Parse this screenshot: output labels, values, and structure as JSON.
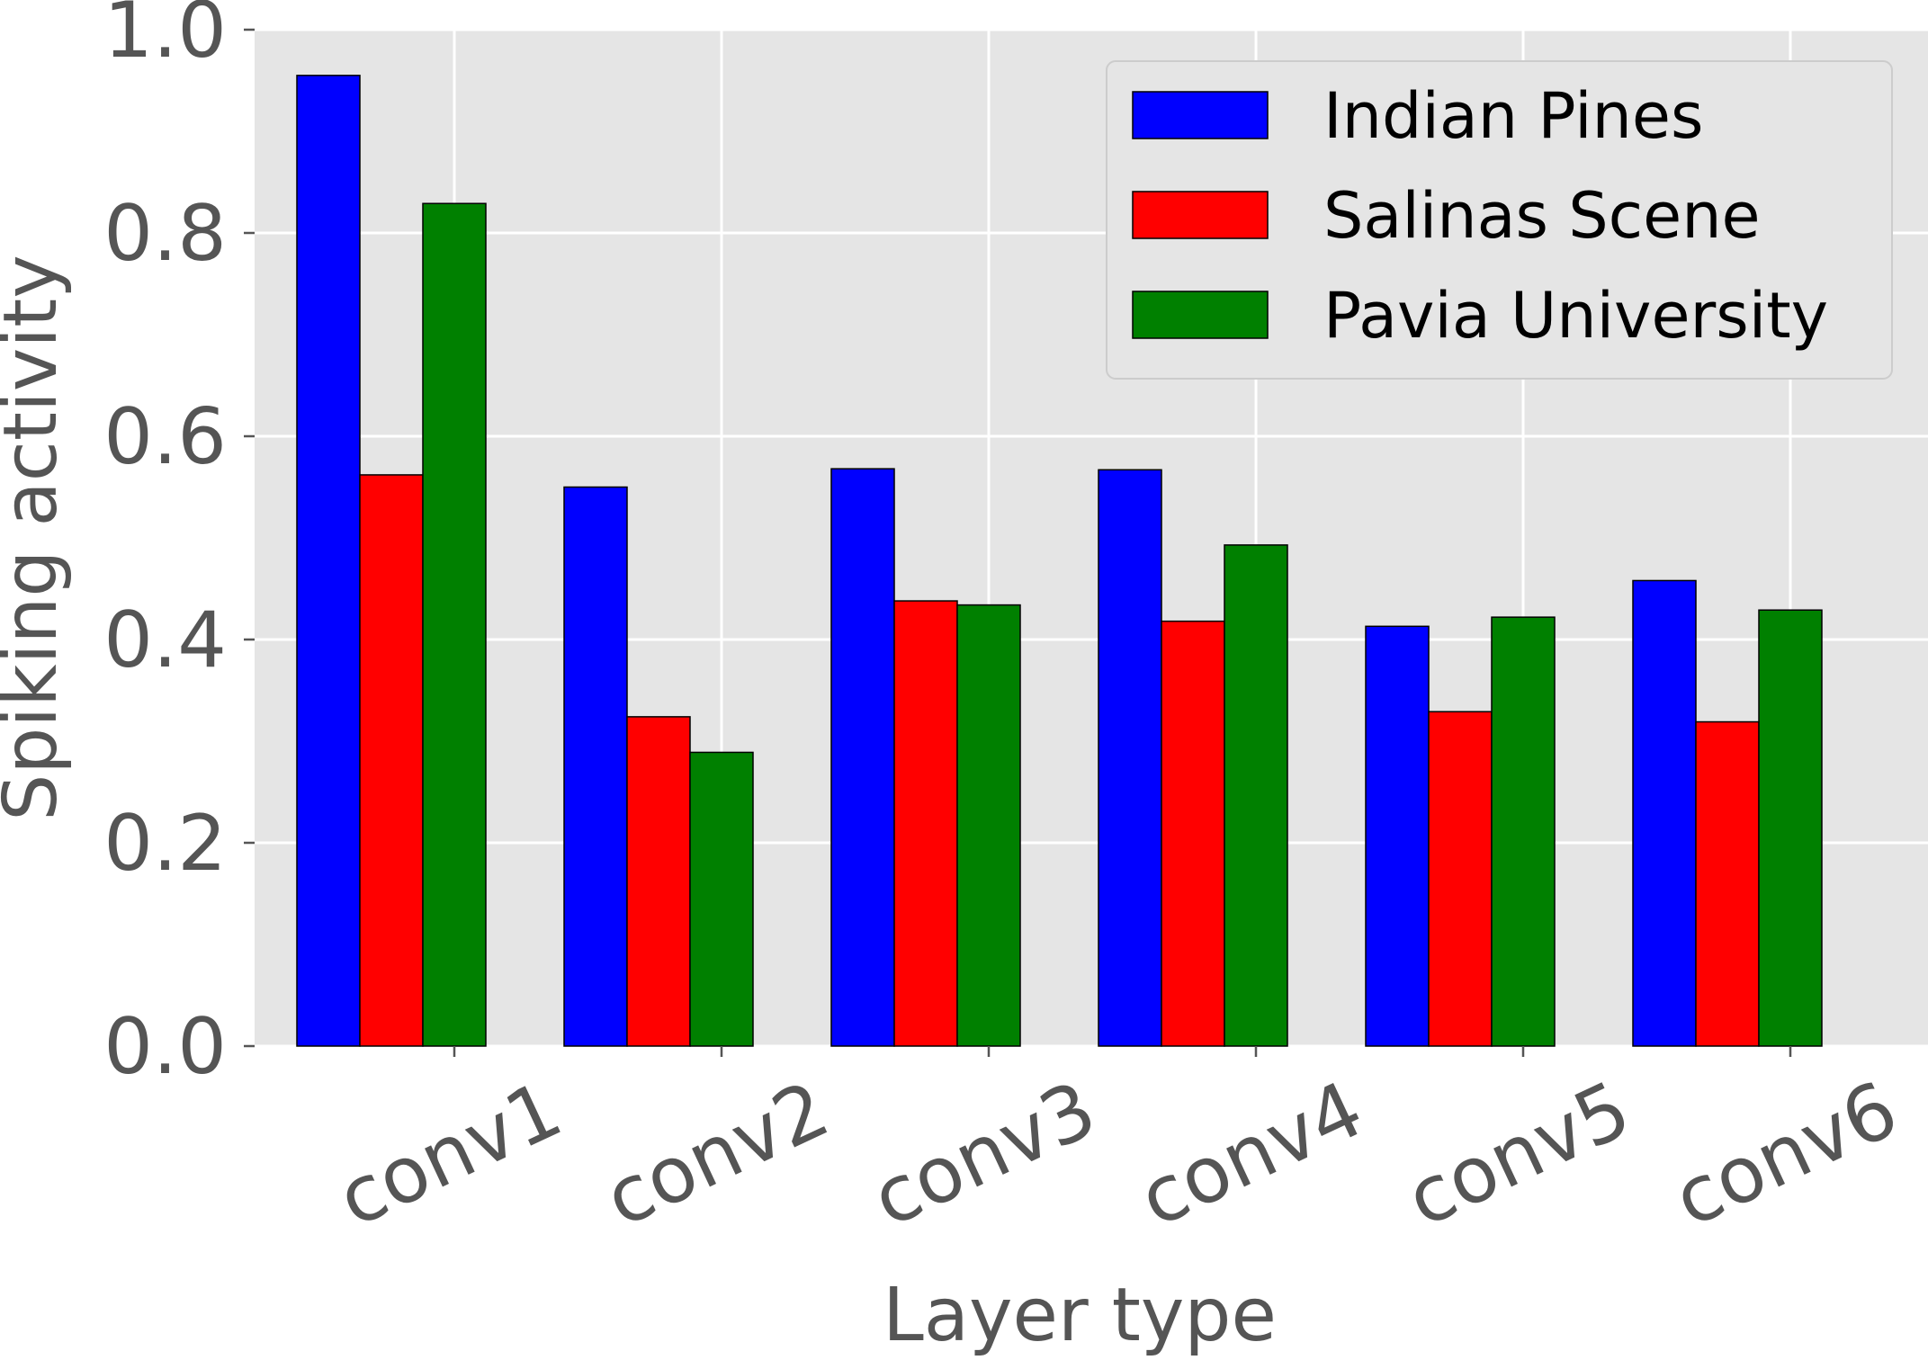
{
  "chart_data": {
    "type": "bar",
    "xlabel": "Layer type",
    "ylabel": "Spiking activity",
    "ylim": [
      0.0,
      1.0
    ],
    "yticks": [
      "0.0",
      "0.2",
      "0.4",
      "0.6",
      "0.8",
      "1.0"
    ],
    "categories": [
      "conv1",
      "conv2",
      "conv3",
      "conv4",
      "conv5",
      "conv6"
    ],
    "series": [
      {
        "name": "Indian Pines",
        "color": "#0000ff",
        "values": [
          0.955,
          0.55,
          0.568,
          0.567,
          0.413,
          0.458
        ]
      },
      {
        "name": "Salinas Scene",
        "color": "#ff0000",
        "values": [
          0.562,
          0.324,
          0.438,
          0.418,
          0.329,
          0.319
        ]
      },
      {
        "name": "Pavia University",
        "color": "#008000",
        "values": [
          0.829,
          0.289,
          0.434,
          0.493,
          0.422,
          0.429
        ]
      }
    ],
    "grid": true,
    "legend_position": "top-right",
    "plot_background": "#e5e5e5"
  }
}
